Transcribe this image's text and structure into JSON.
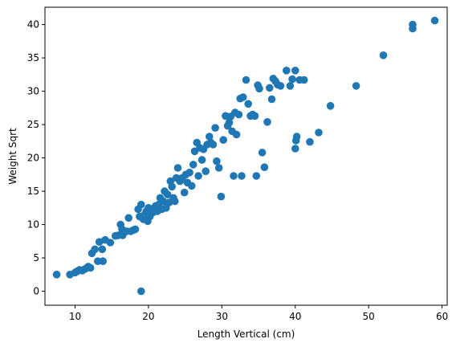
{
  "chart_data": {
    "type": "scatter",
    "xlabel": "Length Vertical (cm)",
    "ylabel": "Weight Sqrt",
    "xlim": [
      5.9,
      60.7
    ],
    "ylim": [
      -2.1,
      42.6
    ],
    "xticks": [
      10,
      20,
      30,
      40,
      50,
      60
    ],
    "yticks": [
      0,
      5,
      10,
      15,
      20,
      25,
      30,
      35,
      40
    ],
    "grid": false,
    "marker_color": "#1f77b4",
    "points": [
      [
        7.5,
        2.5
      ],
      [
        9.3,
        2.5
      ],
      [
        10.0,
        2.8
      ],
      [
        10.3,
        3.0
      ],
      [
        10.6,
        3.2
      ],
      [
        11.0,
        3.1
      ],
      [
        11.3,
        3.3
      ],
      [
        11.6,
        3.5
      ],
      [
        11.8,
        3.7
      ],
      [
        12.1,
        3.5
      ],
      [
        12.3,
        5.7
      ],
      [
        12.7,
        6.3
      ],
      [
        13.1,
        4.5
      ],
      [
        13.3,
        7.4
      ],
      [
        13.7,
        6.3
      ],
      [
        13.8,
        4.5
      ],
      [
        14.1,
        7.7
      ],
      [
        14.8,
        7.3
      ],
      [
        15.5,
        8.3
      ],
      [
        15.9,
        8.4
      ],
      [
        16.2,
        10.0
      ],
      [
        16.4,
        9.3
      ],
      [
        16.5,
        8.4
      ],
      [
        17.0,
        9.0
      ],
      [
        17.3,
        11.0
      ],
      [
        17.6,
        9.0
      ],
      [
        18.0,
        9.2
      ],
      [
        18.2,
        9.3
      ],
      [
        18.6,
        12.3
      ],
      [
        18.8,
        11.2
      ],
      [
        19.0,
        13.0
      ],
      [
        19.2,
        11.0
      ],
      [
        19.3,
        10.8
      ],
      [
        19.5,
        11.5
      ],
      [
        19.7,
        12.0
      ],
      [
        19.9,
        10.5
      ],
      [
        20.0,
        12.5
      ],
      [
        20.2,
        11.2
      ],
      [
        20.4,
        12.2
      ],
      [
        20.6,
        11.8
      ],
      [
        20.8,
        12.5
      ],
      [
        21.0,
        12.8
      ],
      [
        21.2,
        12.0
      ],
      [
        21.4,
        13.0
      ],
      [
        21.6,
        14.0
      ],
      [
        21.8,
        12.3
      ],
      [
        22.0,
        13.5
      ],
      [
        22.2,
        15.0
      ],
      [
        22.4,
        12.5
      ],
      [
        22.6,
        14.5
      ],
      [
        22.8,
        13.3
      ],
      [
        23.0,
        16.5
      ],
      [
        23.2,
        15.7
      ],
      [
        23.4,
        14.0
      ],
      [
        23.6,
        13.5
      ],
      [
        23.8,
        17.0
      ],
      [
        24.0,
        18.5
      ],
      [
        24.3,
        16.5
      ],
      [
        24.6,
        17.0
      ],
      [
        24.9,
        14.8
      ],
      [
        25.1,
        17.5
      ],
      [
        25.3,
        16.3
      ],
      [
        25.6,
        17.8
      ],
      [
        25.9,
        15.8
      ],
      [
        26.1,
        19.0
      ],
      [
        26.3,
        21.0
      ],
      [
        26.6,
        22.3
      ],
      [
        26.8,
        17.3
      ],
      [
        27.0,
        21.5
      ],
      [
        27.3,
        19.7
      ],
      [
        27.5,
        21.3
      ],
      [
        27.8,
        18.0
      ],
      [
        28.0,
        22.0
      ],
      [
        28.3,
        23.2
      ],
      [
        28.5,
        22.3
      ],
      [
        28.8,
        22.0
      ],
      [
        29.1,
        24.5
      ],
      [
        29.3,
        19.5
      ],
      [
        29.6,
        18.5
      ],
      [
        29.9,
        14.2
      ],
      [
        30.2,
        22.7
      ],
      [
        30.5,
        26.3
      ],
      [
        30.8,
        24.8
      ],
      [
        31.0,
        25.3
      ],
      [
        31.2,
        26.2
      ],
      [
        31.4,
        24.0
      ],
      [
        31.6,
        17.3
      ],
      [
        31.8,
        26.8
      ],
      [
        32.0,
        23.5
      ],
      [
        32.3,
        26.5
      ],
      [
        32.5,
        28.9
      ],
      [
        32.7,
        17.3
      ],
      [
        32.9,
        29.1
      ],
      [
        33.3,
        31.7
      ],
      [
        33.6,
        28.1
      ],
      [
        33.9,
        26.3
      ],
      [
        34.2,
        26.5
      ],
      [
        34.5,
        26.3
      ],
      [
        34.7,
        17.3
      ],
      [
        34.9,
        30.9
      ],
      [
        35.1,
        30.4
      ],
      [
        35.5,
        20.8
      ],
      [
        35.8,
        18.6
      ],
      [
        36.2,
        25.4
      ],
      [
        36.5,
        30.5
      ],
      [
        36.8,
        28.8
      ],
      [
        37.0,
        31.9
      ],
      [
        37.3,
        31.5
      ],
      [
        37.6,
        31.0
      ],
      [
        38.0,
        30.8
      ],
      [
        38.8,
        33.1
      ],
      [
        39.3,
        30.8
      ],
      [
        39.6,
        31.8
      ],
      [
        40.0,
        33.1
      ],
      [
        40.0,
        21.4
      ],
      [
        40.1,
        22.6
      ],
      [
        40.2,
        23.2
      ],
      [
        40.6,
        31.7
      ],
      [
        41.2,
        31.7
      ],
      [
        42.0,
        22.4
      ],
      [
        43.2,
        23.8
      ],
      [
        44.8,
        27.8
      ],
      [
        48.3,
        30.8
      ],
      [
        52.0,
        35.4
      ],
      [
        56.0,
        39.4
      ],
      [
        56.0,
        40.0
      ],
      [
        59.0,
        40.6
      ],
      [
        19.0,
        0.0
      ]
    ]
  }
}
